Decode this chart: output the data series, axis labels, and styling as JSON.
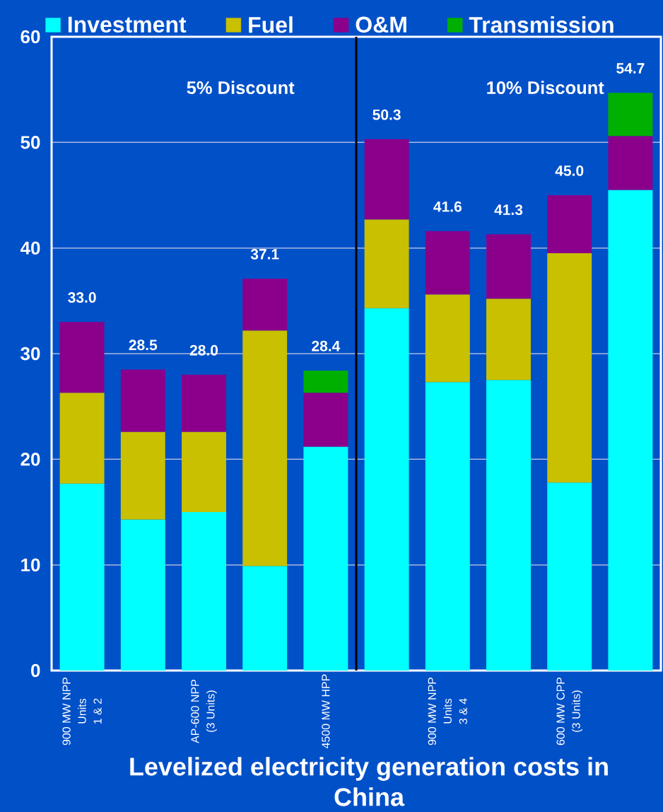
{
  "chart_data": {
    "type": "bar",
    "stacked": true,
    "title": "Levelized electricity generation costs in China",
    "categories": [
      "900 MW NPP\nUnits\n1 & 2",
      null,
      "AP-600 NPP\n(3 Units)",
      null,
      "4500 MW HPP",
      null,
      "900 MW NPP\nUnits\n3 & 4",
      null,
      "600 MW CPP\n(3 Units)",
      null
    ],
    "series": [
      {
        "name": "Investment",
        "color": "#00ffff",
        "values": [
          17.7,
          14.3,
          15.0,
          9.9,
          21.2,
          34.3,
          27.3,
          27.5,
          17.8,
          45.5
        ]
      },
      {
        "name": "Fuel",
        "color": "#c8c000",
        "values": [
          8.6,
          8.3,
          7.6,
          22.3,
          null,
          8.4,
          8.3,
          7.7,
          21.7,
          null
        ]
      },
      {
        "name": "O&M",
        "color": "#8b008b",
        "values": [
          6.7,
          5.9,
          5.4,
          4.9,
          5.1,
          7.6,
          6.0,
          6.1,
          5.5,
          5.1
        ]
      },
      {
        "name": "Transmission",
        "color": "#00b000",
        "values": [
          null,
          null,
          null,
          null,
          2.1,
          null,
          null,
          null,
          null,
          4.1
        ]
      }
    ],
    "totals": [
      "33.0",
      "28.5",
      "28.0",
      "37.1",
      "28.4",
      "50.3",
      "41.6",
      "41.3",
      "45.0",
      "54.7"
    ],
    "ylim": [
      0,
      60
    ],
    "yticks": [
      0,
      10,
      20,
      30,
      40,
      50,
      60
    ],
    "grid": "y",
    "legend": "top",
    "annotations": [
      "5% Discount",
      "10% Discount"
    ]
  }
}
